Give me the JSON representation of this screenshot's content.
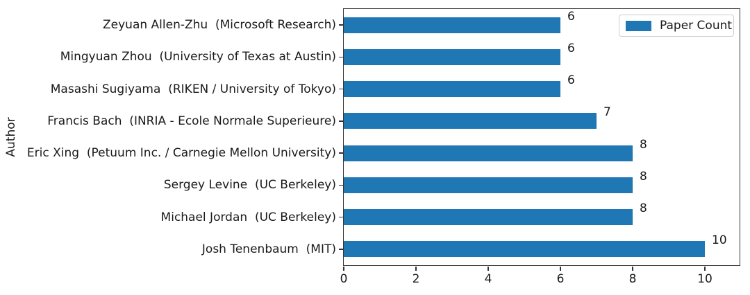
{
  "figure": {
    "background": "#ffffff",
    "axis_color": "#333333"
  },
  "legend": {
    "label": "Paper Count",
    "swatch_color": "#1f77b4"
  },
  "chart_data": {
    "type": "bar",
    "orientation": "horizontal",
    "title": "",
    "xlabel": "",
    "ylabel": "Author",
    "bar_color": "#1f77b4",
    "xlim": [
      0,
      10.96
    ],
    "xticks": [
      0,
      2,
      4,
      6,
      8,
      10
    ],
    "grid": false,
    "legend_position": "upper-right",
    "legend_entries": [
      "Paper Count"
    ],
    "categories": [
      "Zeyuan Allen-Zhu  (Microsoft Research)",
      "Mingyuan Zhou  (University of Texas at Austin)",
      "Masashi Sugiyama  (RIKEN / University of Tokyo)",
      "Francis Bach  (INRIA - Ecole Normale Superieure)",
      "Eric Xing  (Petuum Inc. / Carnegie Mellon University)",
      "Sergey Levine  (UC Berkeley)",
      "Michael Jordan  (UC Berkeley)",
      "Josh Tenenbaum  (MIT)"
    ],
    "values": [
      6,
      6,
      6,
      7,
      8,
      8,
      8,
      10
    ],
    "value_labels": [
      "6",
      "6",
      "6",
      "7",
      "8",
      "8",
      "8",
      "10"
    ]
  }
}
